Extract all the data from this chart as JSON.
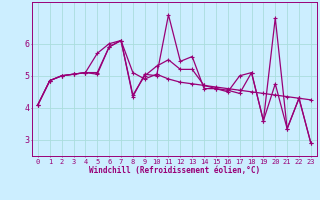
{
  "xlabel": "Windchill (Refroidissement éolien,°C)",
  "background_color": "#cceeff",
  "grid_color": "#aadddd",
  "line_color": "#990077",
  "xlim": [
    -0.5,
    23.5
  ],
  "ylim": [
    2.5,
    7.3
  ],
  "yticks": [
    3,
    4,
    5,
    6
  ],
  "xticks": [
    0,
    1,
    2,
    3,
    4,
    5,
    6,
    7,
    8,
    9,
    10,
    11,
    12,
    13,
    14,
    15,
    16,
    17,
    18,
    19,
    20,
    21,
    22,
    23
  ],
  "series": [
    [
      4.1,
      4.85,
      5.0,
      5.05,
      5.1,
      5.05,
      5.9,
      6.1,
      4.35,
      5.05,
      5.0,
      6.9,
      5.45,
      5.6,
      4.6,
      4.6,
      4.55,
      4.45,
      5.1,
      3.6,
      4.75,
      3.35,
      4.3,
      2.9
    ],
    [
      4.1,
      4.85,
      5.0,
      5.05,
      5.1,
      5.1,
      5.9,
      6.1,
      5.1,
      4.9,
      5.05,
      4.9,
      4.8,
      4.75,
      4.7,
      4.65,
      4.6,
      4.55,
      4.5,
      4.45,
      4.4,
      4.35,
      4.3,
      4.25
    ],
    [
      4.1,
      4.85,
      5.0,
      5.05,
      5.1,
      5.7,
      6.0,
      6.1,
      4.4,
      5.0,
      5.3,
      5.5,
      5.2,
      5.2,
      4.7,
      4.6,
      4.5,
      5.0,
      5.1,
      3.6,
      6.8,
      3.35,
      4.3,
      2.9
    ]
  ],
  "xlabel_fontsize": 5.5,
  "tick_fontsize": 5.0,
  "linewidth": 0.9,
  "markersize": 3.5
}
